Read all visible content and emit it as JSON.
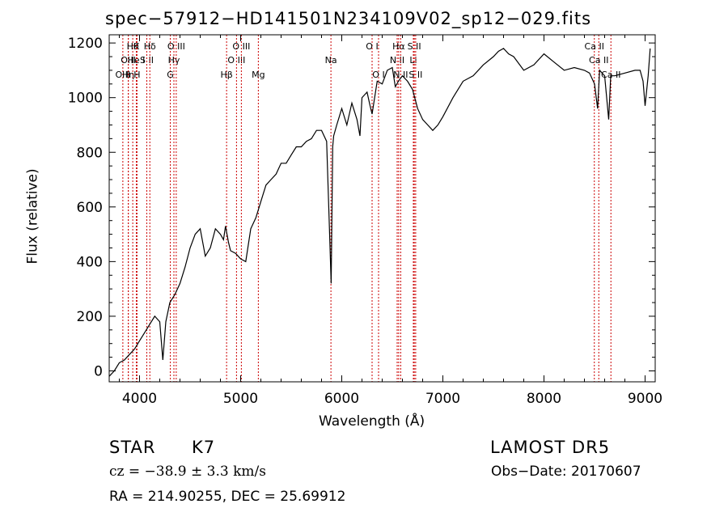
{
  "chart_data": {
    "type": "line",
    "title": "spec−57912−HD141501N234109V02_sp12−029.fits",
    "xlabel": "Wavelength (Å)",
    "ylabel": "Flux (relative)",
    "xlim": [
      3700,
      9100
    ],
    "ylim": [
      -40,
      1230
    ],
    "xticks": [
      4000,
      5000,
      6000,
      7000,
      8000,
      9000
    ],
    "yticks": [
      0,
      200,
      400,
      600,
      800,
      1000,
      1200
    ],
    "grid": false,
    "legend": "none",
    "series": [
      {
        "x": [
          3700,
          3750,
          3800,
          3850,
          3900,
          3950,
          4000,
          4050,
          4100,
          4150,
          4200,
          4230,
          4260,
          4300,
          4350,
          4400,
          4450,
          4500,
          4550,
          4600,
          4650,
          4700,
          4750,
          4800,
          4830,
          4850,
          4880,
          4900,
          4950,
          5000,
          5050,
          5100,
          5150,
          5200,
          5250,
          5300,
          5350,
          5400,
          5450,
          5500,
          5550,
          5600,
          5650,
          5700,
          5750,
          5800,
          5850,
          5880,
          5895,
          5910,
          5920,
          5950,
          6000,
          6050,
          6100,
          6150,
          6180,
          6200,
          6250,
          6280,
          6300,
          6350,
          6400,
          6450,
          6500,
          6530,
          6560,
          6600,
          6650,
          6700,
          6750,
          6800,
          6850,
          6900,
          6950,
          7000,
          7100,
          7200,
          7300,
          7400,
          7500,
          7550,
          7600,
          7650,
          7700,
          7800,
          7900,
          8000,
          8100,
          8200,
          8300,
          8400,
          8450,
          8500,
          8530,
          8550,
          8600,
          8640,
          8660,
          8700,
          8800,
          8900,
          8950,
          8980,
          9000,
          9030,
          9050
        ],
        "y": [
          -20,
          0,
          30,
          40,
          60,
          80,
          110,
          140,
          170,
          200,
          180,
          40,
          180,
          250,
          280,
          320,
          380,
          450,
          500,
          520,
          420,
          450,
          520,
          500,
          480,
          530,
          470,
          440,
          430,
          410,
          400,
          520,
          560,
          620,
          680,
          700,
          720,
          760,
          760,
          790,
          820,
          820,
          840,
          850,
          880,
          880,
          840,
          500,
          320,
          820,
          860,
          900,
          960,
          900,
          980,
          920,
          860,
          1000,
          1020,
          970,
          940,
          1060,
          1050,
          1100,
          1110,
          1040,
          1060,
          1080,
          1060,
          1030,
          960,
          920,
          900,
          880,
          900,
          930,
          1000,
          1060,
          1080,
          1120,
          1150,
          1170,
          1180,
          1160,
          1150,
          1100,
          1120,
          1160,
          1130,
          1100,
          1110,
          1100,
          1090,
          1050,
          960,
          1100,
          1080,
          920,
          1080,
          1080,
          1090,
          1100,
          1100,
          1060,
          970,
          1080,
          1180
        ]
      }
    ],
    "line_markers": [
      {
        "wavelength": 3835,
        "label": "O II",
        "row": 2
      },
      {
        "wavelength": 3889,
        "label": "Hη",
        "row": 2
      },
      {
        "wavelength": 3889,
        "label": "O II",
        "row": 1
      },
      {
        "wavelength": 3933,
        "label": "Hθ",
        "row": 0
      },
      {
        "wavelength": 3968,
        "label": "He I",
        "row": 1
      },
      {
        "wavelength": 3968,
        "label": "K",
        "row": 0
      },
      {
        "wavelength": 3975,
        "label": "H",
        "row": 2
      },
      {
        "wavelength": 4072,
        "label": "S II",
        "row": 1
      },
      {
        "wavelength": 4102,
        "label": "Hδ",
        "row": 0
      },
      {
        "wavelength": 4304,
        "label": "G",
        "row": 2
      },
      {
        "wavelength": 4340,
        "label": "Hγ",
        "row": 1
      },
      {
        "wavelength": 4363,
        "label": "O III",
        "row": 0
      },
      {
        "wavelength": 4861,
        "label": "Hβ",
        "row": 2
      },
      {
        "wavelength": 4959,
        "label": "O III",
        "row": 1
      },
      {
        "wavelength": 5007,
        "label": "O III",
        "row": 0
      },
      {
        "wavelength": 5175,
        "label": "Mg",
        "row": 2
      },
      {
        "wavelength": 5893,
        "label": "Na",
        "row": 1
      },
      {
        "wavelength": 6300,
        "label": "O I",
        "row": 0
      },
      {
        "wavelength": 6364,
        "label": "O I",
        "row": 2
      },
      {
        "wavelength": 6548,
        "label": "N II",
        "row": 1
      },
      {
        "wavelength": 6563,
        "label": "Hα",
        "row": 0
      },
      {
        "wavelength": 6583,
        "label": "N II",
        "row": 2
      },
      {
        "wavelength": 6708,
        "label": "Li",
        "row": 1
      },
      {
        "wavelength": 6717,
        "label": "S II",
        "row": 0
      },
      {
        "wavelength": 6731,
        "label": "S II",
        "row": 2
      },
      {
        "wavelength": 8498,
        "label": "Ca II",
        "row": 0
      },
      {
        "wavelength": 8542,
        "label": "Ca II",
        "row": 1
      },
      {
        "wavelength": 8662,
        "label": "Ca II",
        "row": 2
      }
    ],
    "marker_color": "#cc0000",
    "line_color": "#000000"
  },
  "info": {
    "object_class": "STAR",
    "subclass": "K7",
    "survey": "LAMOST DR5",
    "redshift_text": "cz = −38.9 ± 3.3 km/s",
    "obs_date_text": "Obs−Date: 20170607",
    "coords_text": "RA = 214.90255, DEC =  25.69912"
  }
}
